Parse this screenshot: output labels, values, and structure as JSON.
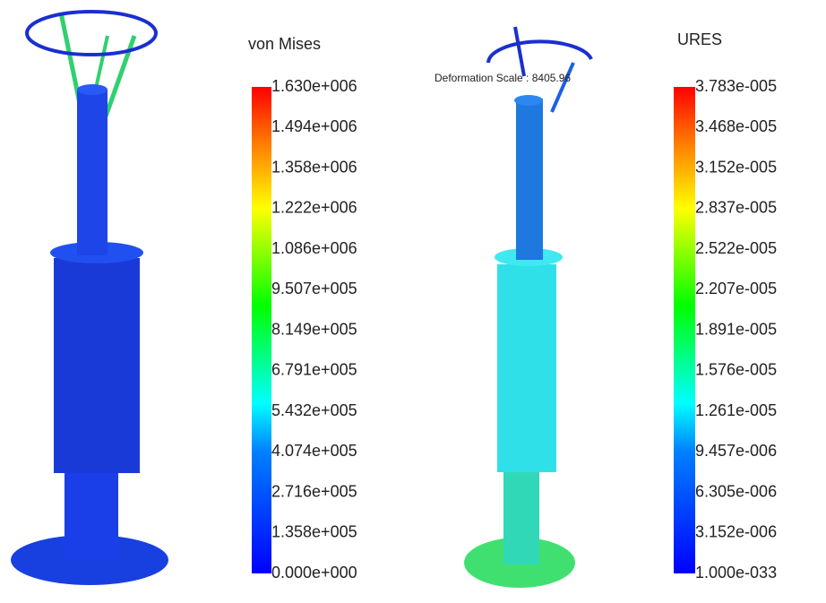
{
  "panels": [
    {
      "legend_title": "von Mises",
      "legend_labels": [
        "1.630e+006",
        "1.494e+006",
        "1.358e+006",
        "1.222e+006",
        "1.086e+006",
        "9.507e+005",
        "8.149e+005",
        "6.791e+005",
        "5.432e+005",
        "4.074e+005",
        "2.716e+005",
        "1.358e+005",
        "0.000e+000"
      ]
    },
    {
      "annotation": "Deformation Scale : 8405.96",
      "legend_title": "URES",
      "legend_labels": [
        "3.783e-005",
        "3.468e-005",
        "3.152e-005",
        "2.837e-005",
        "2.522e-005",
        "2.207e-005",
        "1.891e-005",
        "1.576e-005",
        "1.261e-005",
        "9.457e-006",
        "6.305e-006",
        "3.152e-006",
        "1.000e-033"
      ]
    }
  ]
}
